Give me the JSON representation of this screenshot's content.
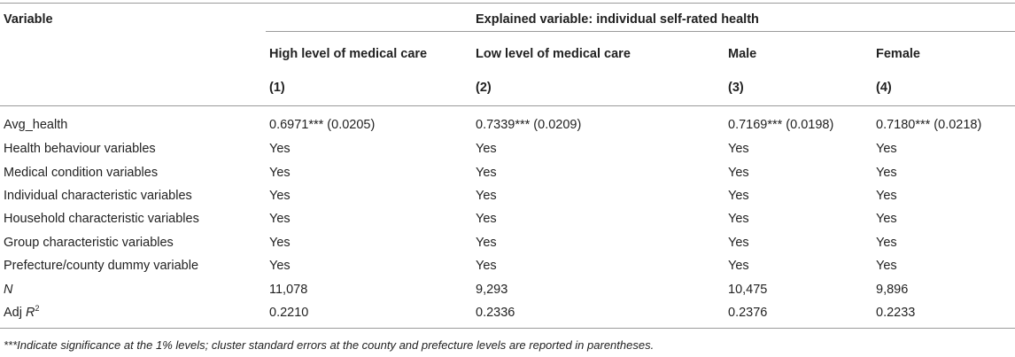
{
  "header": {
    "variable": "Variable",
    "explained": "Explained variable: individual self-rated health",
    "columns": [
      "High level of medical care",
      "Low level of medical care",
      "Male",
      "Female"
    ],
    "numbers": [
      "(1)",
      "(2)",
      "(3)",
      "(4)"
    ]
  },
  "rows": [
    {
      "label": "Avg_health",
      "values": [
        "0.6971*** (0.0205)",
        "0.7339*** (0.0209)",
        "0.7169*** (0.0198)",
        "0.7180*** (0.0218)"
      ]
    },
    {
      "label": "Health behaviour variables",
      "values": [
        "Yes",
        "Yes",
        "Yes",
        "Yes"
      ]
    },
    {
      "label": "Medical condition variables",
      "values": [
        "Yes",
        "Yes",
        "Yes",
        "Yes"
      ]
    },
    {
      "label": "Individual characteristic variables",
      "values": [
        "Yes",
        "Yes",
        "Yes",
        "Yes"
      ]
    },
    {
      "label": "Household characteristic variables",
      "values": [
        "Yes",
        "Yes",
        "Yes",
        "Yes"
      ]
    },
    {
      "label": "Group characteristic variables",
      "values": [
        "Yes",
        "Yes",
        "Yes",
        "Yes"
      ]
    },
    {
      "label": "Prefecture/county dummy variable",
      "values": [
        "Yes",
        "Yes",
        "Yes",
        "Yes"
      ]
    },
    {
      "label": "N",
      "values": [
        "11,078",
        "9,293",
        "10,475",
        "9,896"
      ]
    },
    {
      "label_prefix": "Adj ",
      "label_var": "R",
      "label_sup": "2",
      "values": [
        "0.2210",
        "0.2336",
        "0.2376",
        "0.2233"
      ]
    }
  ],
  "footnote": "***Indicate significance at the 1% levels; cluster standard errors at the county and prefecture levels are reported in parentheses."
}
